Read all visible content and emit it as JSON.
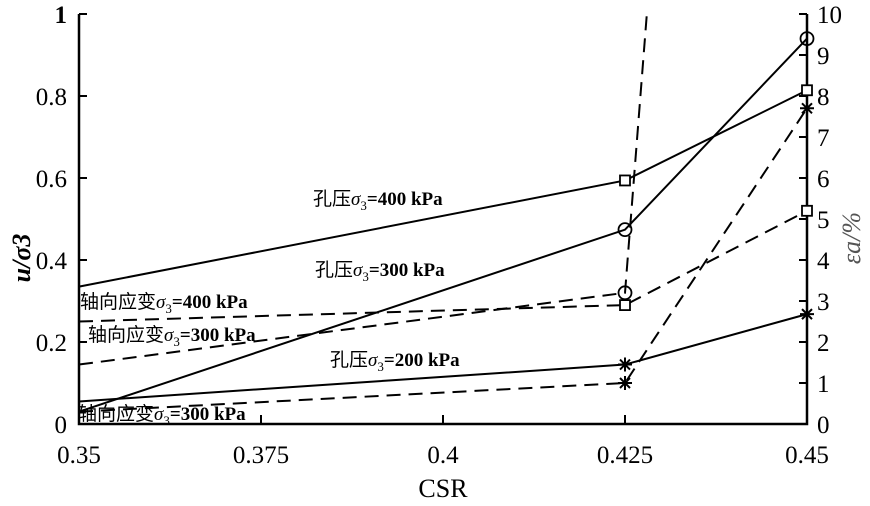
{
  "chart_data": {
    "type": "line",
    "xlabel": "CSR",
    "ylabel": "u/σ3",
    "ylabel_right": "εa/%",
    "xlim": [
      0.35,
      0.45
    ],
    "ylim": [
      0,
      1
    ],
    "ylim_right": [
      0,
      10
    ],
    "x_ticks": [
      "0.35",
      "0.375",
      "0.4",
      "0.425",
      "0.45"
    ],
    "y_ticks": [
      "0",
      "0.2",
      "0.4",
      "0.6",
      "0.8",
      "1"
    ],
    "y_ticks_right": [
      "0",
      "1",
      "2",
      "3",
      "4",
      "5",
      "6",
      "7",
      "8",
      "9",
      "10"
    ],
    "grid": false,
    "series": [
      {
        "name": "孔压σ3=400 kPa",
        "axis": "left",
        "style": "solid",
        "marker": "square",
        "x": [
          0.35,
          0.425,
          0.45
        ],
        "y": [
          0.335,
          0.594,
          0.814
        ],
        "markers_at": [
          1,
          2
        ]
      },
      {
        "name": "孔压σ3=300 kPa",
        "axis": "left",
        "style": "solid",
        "marker": "circle",
        "x": [
          0.35,
          0.425,
          0.45
        ],
        "y": [
          0.03,
          0.474,
          0.94
        ],
        "markers_at": [
          1,
          2
        ]
      },
      {
        "name": "孔压σ3=200 kPa",
        "axis": "left",
        "style": "solid",
        "marker": "star",
        "x": [
          0.35,
          0.425,
          0.45
        ],
        "y": [
          0.055,
          0.145,
          0.268
        ],
        "markers_at": [
          1,
          2
        ]
      },
      {
        "name": "轴向应变σ3=400 kPa",
        "axis": "right",
        "style": "dashed",
        "marker": "square",
        "x": [
          0.35,
          0.425,
          0.45
        ],
        "y": [
          2.5,
          2.9,
          5.2
        ],
        "markers_at": [
          1,
          2
        ]
      },
      {
        "name": "轴向应变σ3=300 kPa",
        "axis": "right",
        "style": "dashed",
        "marker": "circle",
        "x": [
          0.35,
          0.425,
          0.428
        ],
        "y": [
          1.45,
          3.2,
          10.0
        ],
        "markers_at": [
          1
        ]
      },
      {
        "name": "轴向应变σ3=300 kPa",
        "axis": "right",
        "style": "dashed",
        "marker": "star",
        "x": [
          0.35,
          0.425,
          0.45
        ],
        "y": [
          0.3,
          1.0,
          7.7
        ],
        "markers_at": [
          1,
          2
        ]
      }
    ],
    "annotations": [
      {
        "text": "孔压σ3=400 kPa",
        "series": 0
      },
      {
        "text": "孔压σ3=300 kPa",
        "series": 1
      },
      {
        "text": "孔压σ3=200 kPa",
        "series": 2
      },
      {
        "text": "轴向应变σ3=400 kPa",
        "series": 3
      },
      {
        "text": "轴向应变σ3=300 kPa",
        "series": 4
      },
      {
        "text": "轴向应变σ3=300 kPa",
        "series": 5
      }
    ],
    "colors": {
      "lines": "#000000",
      "right_label": "#555555"
    }
  }
}
